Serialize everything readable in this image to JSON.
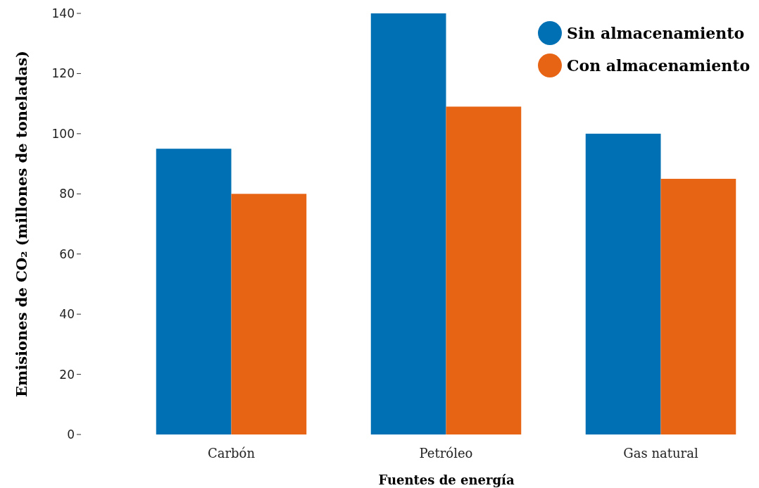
{
  "chart_data": {
    "type": "bar",
    "xlabel": "Fuentes de energía",
    "ylabel": "Emisiones de CO₂ (millones de toneladas)",
    "categories": [
      "Carbón",
      "Petróleo",
      "Gas natural"
    ],
    "series": [
      {
        "name": "Sin almacenamiento",
        "color": "#0070b4",
        "values": [
          95,
          140,
          100
        ]
      },
      {
        "name": "Con almacenamiento",
        "color": "#e86415",
        "values": [
          80,
          109,
          85
        ]
      }
    ],
    "ylim": [
      0,
      140
    ],
    "yticks": [
      0,
      20,
      40,
      60,
      80,
      100,
      120,
      140
    ],
    "legend": "top right"
  }
}
